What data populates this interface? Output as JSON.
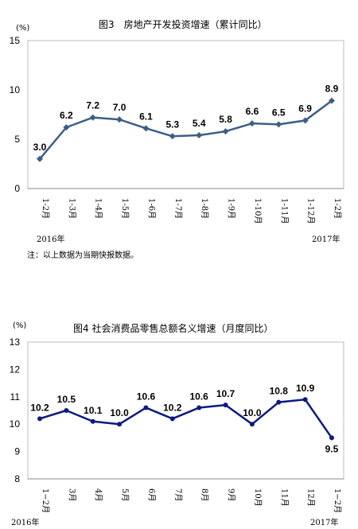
{
  "charts": [
    {
      "title": "图3　房地产开发投资增速（累计同比）",
      "unit": "(%)",
      "year_start": "2016年",
      "year_end": "2017年",
      "note": "注：以上数据为当期快报数据。",
      "color": "#3d5f85",
      "frame_color": "#bcbcbc",
      "marker": "diamond"
    },
    {
      "title": "图4  社会消费品零售总额名义增速（月度同比）",
      "unit": "(%)",
      "year_start": "2016年",
      "year_end": "2017年",
      "color": "#0d1a80",
      "frame_color": "#bcbcbc",
      "marker": "circle"
    }
  ],
  "chart_data": [
    {
      "type": "line",
      "title": "图3　房地产开发投资增速（累计同比）",
      "ylabel": "(%)",
      "categories": [
        "1-2月",
        "1-3月",
        "1-4月",
        "1-5月",
        "1-6月",
        "1-7月",
        "1-8月",
        "1-9月",
        "1-10月",
        "1-11月",
        "1-12月",
        "1-2月"
      ],
      "values": [
        3.0,
        6.2,
        7.2,
        7.0,
        6.1,
        5.3,
        5.4,
        5.8,
        6.6,
        6.5,
        6.9,
        8.9
      ],
      "value_labels": [
        "3.0",
        "6.2",
        "7.2",
        "7.0",
        "6.1",
        "5.3",
        "5.4",
        "5.8",
        "6.6",
        "6.5",
        "6.9",
        "8.9"
      ],
      "ylim": [
        0,
        15
      ],
      "yticks": [
        0,
        5,
        10,
        15
      ],
      "grid": false
    },
    {
      "type": "line",
      "title": "图4  社会消费品零售总额名义增速（月度同比）",
      "ylabel": "(%)",
      "categories": [
        "1−2月",
        "3月",
        "4月",
        "5月",
        "6月",
        "7月",
        "8月",
        "9月",
        "10月",
        "11月",
        "12月",
        "1−2月"
      ],
      "values": [
        10.2,
        10.5,
        10.1,
        10.0,
        10.6,
        10.2,
        10.6,
        10.7,
        10.0,
        10.8,
        10.9,
        9.5
      ],
      "value_labels": [
        "10.2",
        "10.5",
        "10.1",
        "10.0",
        "10.6",
        "10.2",
        "10.6",
        "10.7",
        "10.0",
        "10.8",
        "10.9",
        "9.5"
      ],
      "ylim": [
        8,
        13
      ],
      "yticks": [
        8,
        9,
        10,
        11,
        12,
        13
      ],
      "grid": false
    }
  ]
}
